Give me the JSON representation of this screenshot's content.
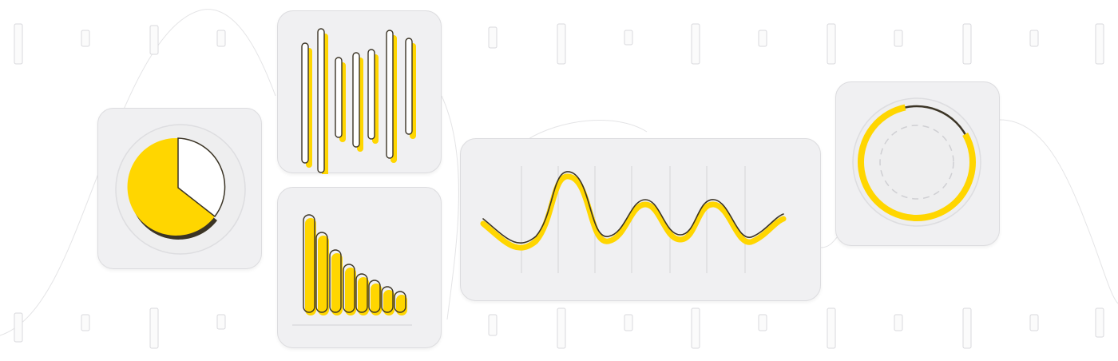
{
  "colors": {
    "accent": "#ffd600",
    "outline": "#3b3425",
    "card_bg": "#f0f0f2",
    "card_border": "#dcdcdf",
    "tick": "#d8d8dc"
  },
  "widgets": [
    {
      "id": "pie-card",
      "kind": "pie",
      "filled_fraction": 0.65
    },
    {
      "id": "waveform-card",
      "kind": "waveform",
      "bar_count": 7
    },
    {
      "id": "bar-card",
      "kind": "descending-bars",
      "bar_count": 8
    },
    {
      "id": "sine-card",
      "kind": "sine-wave"
    },
    {
      "id": "ring-card",
      "kind": "progress-ring",
      "progress_fraction": 0.8
    }
  ]
}
